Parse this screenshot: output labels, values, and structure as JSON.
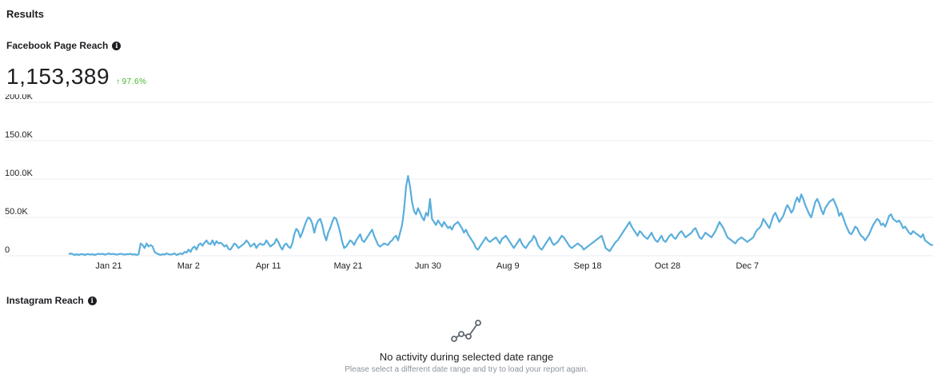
{
  "results": {
    "title": "Results"
  },
  "facebook": {
    "label": "Facebook Page Reach",
    "info_icon": "info-icon",
    "total": "1,153,389",
    "change_arrow": "↑",
    "change": "97.6%",
    "change_color": "#42b72a"
  },
  "chart_data": {
    "type": "line",
    "title": "",
    "xlabel": "",
    "ylabel": "",
    "ylim": [
      0,
      200000
    ],
    "y_ticks": [
      {
        "value": 0,
        "label": "0"
      },
      {
        "value": 50000,
        "label": "50.0K"
      },
      {
        "value": 100000,
        "label": "100.0K"
      },
      {
        "value": 150000,
        "label": "150.0K"
      },
      {
        "value": 200000,
        "label": "200.0K"
      }
    ],
    "x_ticks": [
      "Jan 21",
      "Mar 2",
      "Apr 11",
      "May 21",
      "Jun 30",
      "Aug 9",
      "Sep 18",
      "Oct 28",
      "Dec 7"
    ],
    "x_tick_days": [
      20,
      60,
      100,
      140,
      180,
      220,
      260,
      300,
      340
    ],
    "grid": true,
    "line_color": "#5aaedc",
    "series": [
      {
        "values": [
          2000,
          3000,
          2000,
          1000,
          2000,
          1000,
          2000,
          2000,
          1000,
          2000,
          2000,
          1500,
          2000,
          1000,
          2000,
          2500,
          2000,
          2500,
          1500,
          2000,
          3000,
          2000,
          2500,
          2000,
          1500,
          2000,
          2500,
          2000,
          1500,
          2000,
          2000,
          2500,
          1500,
          2000,
          1000,
          2000,
          16000,
          14000,
          10000,
          16000,
          12000,
          14000,
          12000,
          5000,
          3000,
          2000,
          1000,
          2000,
          1500,
          3000,
          2000,
          1500,
          2000,
          3000,
          1000,
          2000,
          3000,
          2000,
          5000,
          4000,
          8000,
          5000,
          10000,
          12000,
          8000,
          14000,
          16000,
          13000,
          17000,
          20000,
          16000,
          15000,
          20000,
          14000,
          19000,
          16000,
          17000,
          15000,
          12000,
          14000,
          9000,
          8000,
          12000,
          16000,
          14000,
          10000,
          12000,
          14000,
          16000,
          20000,
          17000,
          12000,
          14000,
          16000,
          10000,
          14000,
          16000,
          14000,
          15000,
          20000,
          16000,
          12000,
          14000,
          16000,
          22000,
          18000,
          12000,
          8000,
          14000,
          16000,
          12000,
          10000,
          16000,
          28000,
          35000,
          32000,
          24000,
          30000,
          38000,
          45000,
          50000,
          48000,
          42000,
          30000,
          40000,
          46000,
          48000,
          40000,
          28000,
          20000,
          30000,
          36000,
          44000,
          50000,
          48000,
          40000,
          30000,
          18000,
          10000,
          12000,
          16000,
          20000,
          18000,
          14000,
          20000,
          24000,
          28000,
          20000,
          18000,
          22000,
          26000,
          30000,
          34000,
          26000,
          20000,
          14000,
          12000,
          14000,
          16000,
          15000,
          14000,
          18000,
          20000,
          24000,
          26000,
          20000,
          30000,
          40000,
          60000,
          90000,
          104000,
          90000,
          70000,
          58000,
          54000,
          62000,
          56000,
          50000,
          46000,
          56000,
          52000,
          74000,
          48000,
          44000,
          40000,
          46000,
          42000,
          38000,
          44000,
          40000,
          36000,
          38000,
          34000,
          40000,
          42000,
          44000,
          40000,
          36000,
          30000,
          34000,
          28000,
          24000,
          20000,
          16000,
          10000,
          8000,
          12000,
          16000,
          20000,
          24000,
          20000,
          18000,
          20000,
          22000,
          24000,
          20000,
          16000,
          22000,
          24000,
          26000,
          22000,
          18000,
          14000,
          10000,
          14000,
          18000,
          22000,
          16000,
          12000,
          10000,
          14000,
          18000,
          20000,
          26000,
          22000,
          14000,
          10000,
          8000,
          12000,
          16000,
          20000,
          24000,
          18000,
          14000,
          16000,
          18000,
          22000,
          26000,
          24000,
          20000,
          16000,
          12000,
          10000,
          12000,
          14000,
          16000,
          14000,
          12000,
          8000,
          10000,
          12000,
          14000,
          16000,
          18000,
          20000,
          22000,
          24000,
          26000,
          18000,
          10000,
          8000,
          6000,
          10000,
          14000,
          18000,
          20000,
          24000,
          28000,
          32000,
          36000,
          40000,
          44000,
          38000,
          34000,
          30000,
          26000,
          32000,
          30000,
          26000,
          24000,
          22000,
          26000,
          30000,
          24000,
          20000,
          18000,
          22000,
          26000,
          20000,
          18000,
          22000,
          26000,
          28000,
          24000,
          22000,
          26000,
          30000,
          32000,
          28000,
          24000,
          26000,
          28000,
          30000,
          34000,
          36000,
          30000,
          24000,
          22000,
          26000,
          30000,
          28000,
          26000,
          24000,
          28000,
          32000,
          38000,
          44000,
          40000,
          36000,
          30000,
          24000,
          22000,
          20000,
          18000,
          16000,
          20000,
          22000,
          24000,
          22000,
          20000,
          18000,
          20000,
          22000,
          24000,
          30000,
          34000,
          36000,
          40000,
          48000,
          44000,
          40000,
          36000,
          44000,
          52000,
          56000,
          50000,
          44000,
          48000,
          52000,
          60000,
          66000,
          62000,
          56000,
          60000,
          70000,
          76000,
          70000,
          80000,
          74000,
          66000,
          60000,
          54000,
          50000,
          60000,
          70000,
          74000,
          68000,
          60000,
          54000,
          62000,
          66000,
          70000,
          72000,
          74000,
          68000,
          62000,
          52000,
          56000,
          50000,
          42000,
          36000,
          30000,
          28000,
          32000,
          38000,
          36000,
          30000,
          26000,
          24000,
          20000,
          24000,
          28000,
          34000,
          40000,
          44000,
          48000,
          46000,
          40000,
          42000,
          38000,
          44000,
          52000,
          54000,
          48000,
          46000,
          44000,
          46000,
          42000,
          36000,
          38000,
          34000,
          30000,
          28000,
          32000,
          30000,
          28000,
          26000,
          24000,
          28000,
          20000,
          18000,
          16000,
          14000,
          14000
        ]
      }
    ]
  },
  "instagram": {
    "label": "Instagram Reach",
    "info_icon": "info-icon",
    "empty_icon": "trend-line-icon",
    "empty_title": "No activity during selected date range",
    "empty_subtitle": "Please select a different date range and try to load your report again."
  }
}
